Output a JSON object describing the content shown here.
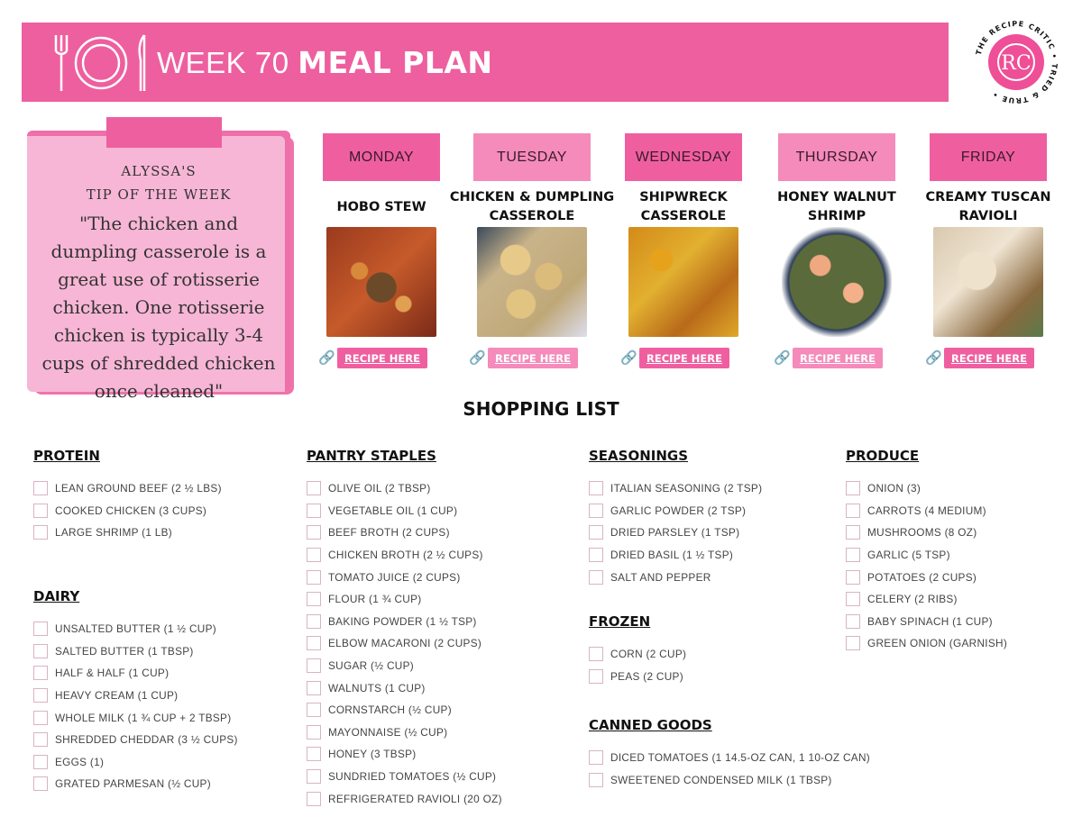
{
  "header": {
    "title_light": "WEEK 70",
    "title_bold": "MEAL PLAN",
    "color": "#ee5f9f",
    "icon": "plate-fork-knife-icon"
  },
  "logo": {
    "ring_text": "THE RECIPE CRITIC • TRIED & TRUE •",
    "monogram": "RC"
  },
  "tip": {
    "label_line1": "ALYSSA'S",
    "label_line2": "TIP OF THE WEEK",
    "text": "\"The chicken and dumpling casserole is a great use of rotisserie chicken. One rotisserie chicken is typically 3-4 cups of shredded chicken once cleaned\""
  },
  "days": [
    {
      "day": "MONDAY",
      "meal": "HOBO STEW",
      "button": "RECIPE HERE",
      "color": "#ef5fa0"
    },
    {
      "day": "TUESDAY",
      "meal": "CHICKEN & DUMPLING CASSEROLE",
      "button": "RECIPE HERE",
      "color": "#f48bbb"
    },
    {
      "day": "WEDNESDAY",
      "meal": "SHIPWRECK CASSEROLE",
      "button": "RECIPE HERE",
      "color": "#ef5fa0"
    },
    {
      "day": "THURSDAY",
      "meal": "HONEY WALNUT SHRIMP",
      "button": "RECIPE HERE",
      "color": "#f48bbb"
    },
    {
      "day": "FRIDAY",
      "meal": "CREAMY TUSCAN RAVIOLI",
      "button": "RECIPE HERE",
      "color": "#ef5fa0"
    }
  ],
  "shopping": {
    "title": "SHOPPING LIST",
    "categories": [
      {
        "name": "PROTEIN",
        "items": [
          "LEAN GROUND BEEF (2 ½ LBS)",
          "COOKED CHICKEN (3 CUPS)",
          "LARGE SHRIMP (1 LB)"
        ]
      },
      {
        "name": "DAIRY",
        "items": [
          "UNSALTED BUTTER (1 ½ CUP)",
          "SALTED BUTTER (1 TBSP)",
          "HALF & HALF (1 CUP)",
          "HEAVY CREAM (1 CUP)",
          "WHOLE MILK (1 ¾ CUP + 2 TBSP)",
          "SHREDDED CHEDDAR (3 ½ CUPS)",
          "EGGS (1)",
          "GRATED PARMESAN (½ CUP)"
        ]
      },
      {
        "name": "PANTRY STAPLES",
        "items": [
          "OLIVE OIL (2 TBSP)",
          "VEGETABLE OIL (1 CUP)",
          "BEEF BROTH (2 CUPS)",
          "CHICKEN BROTH (2 ½ CUPS)",
          "TOMATO JUICE (2 CUPS)",
          "FLOUR (1 ¾ CUP)",
          "BAKING POWDER (1 ½ TSP)",
          "ELBOW MACARONI (2 CUPS)",
          "SUGAR (½ CUP)",
          "WALNUTS (1 CUP)",
          "CORNSTARCH (½ CUP)",
          "MAYONNAISE (½ CUP)",
          "HONEY (3 TBSP)",
          "SUNDRIED TOMATOES (½ CUP)",
          "REFRIGERATED RAVIOLI (20 OZ)"
        ]
      },
      {
        "name": "SEASONINGS",
        "items": [
          "ITALIAN SEASONING (2 TSP)",
          "GARLIC POWDER (2 TSP)",
          "DRIED PARSLEY (1 TSP)",
          "DRIED BASIL (1 ½ TSP)",
          "SALT AND PEPPER"
        ]
      },
      {
        "name": "FROZEN",
        "items": [
          "CORN (2 CUP)",
          "PEAS (2 CUP)"
        ]
      },
      {
        "name": "CANNED GOODS",
        "items": [
          "DICED TOMATOES (1 14.5-OZ CAN, 1 10-OZ CAN)",
          "SWEETENED CONDENSED MILK (1 TBSP)"
        ]
      },
      {
        "name": "PRODUCE",
        "items": [
          "ONION (3)",
          "CARROTS (4 MEDIUM)",
          "MUSHROOMS (8 OZ)",
          "GARLIC (5 TSP)",
          "POTATOES (2 CUPS)",
          "CELERY (2 RIBS)",
          "BABY SPINACH (1 CUP)",
          "GREEN ONION (GARNISH)"
        ]
      }
    ]
  }
}
